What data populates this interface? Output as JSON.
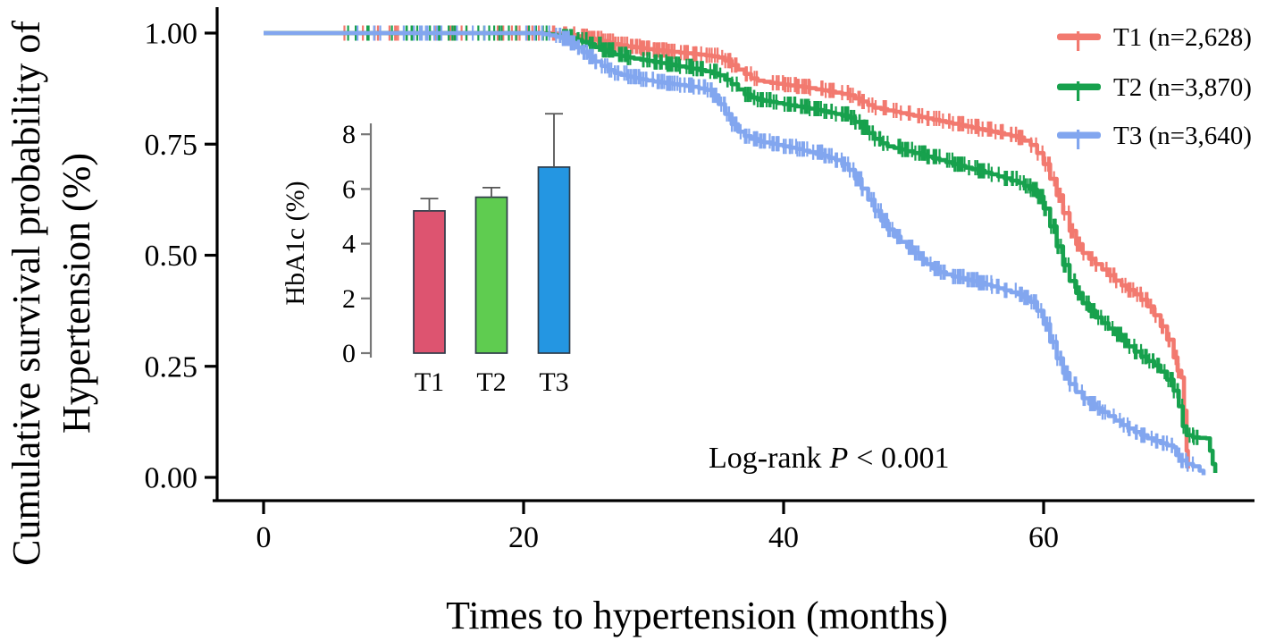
{
  "figure": {
    "kind": "Kaplan-Meier survival plot with inset bar chart",
    "background": "#ffffff"
  },
  "chart_data": [
    {
      "type": "line",
      "subtype": "kaplan-meier-step",
      "xlabel": "Times to hypertension (months)",
      "ylabel_line1": "Cumulative survival probability of",
      "ylabel_line2": "Hypertension (%)",
      "xlim": [
        0,
        76
      ],
      "ylim": [
        0,
        1
      ],
      "xticks": [
        0,
        20,
        40,
        60
      ],
      "yticks": [
        "0.00",
        "0.25",
        "0.50",
        "0.75",
        "1.00"
      ],
      "grid": false,
      "legend_position": "top-right",
      "annotation": {
        "prefix": "Log-rank",
        "stat": "P",
        "suffix": "< 0.001"
      },
      "series": [
        {
          "name": "T1",
          "label": "T1 (n=2,628)",
          "n": "2,628",
          "color": "#F2796F",
          "censor_marks": {
            "start_month": 6,
            "end_month": 70.5,
            "approx_count": 300
          },
          "points": [
            [
              0,
              1.0
            ],
            [
              22,
              1.0
            ],
            [
              23,
              0.998
            ],
            [
              24,
              0.993
            ],
            [
              25,
              0.988
            ],
            [
              26,
              0.982
            ],
            [
              27,
              0.975
            ],
            [
              28,
              0.97
            ],
            [
              29,
              0.966
            ],
            [
              30,
              0.962
            ],
            [
              31,
              0.959
            ],
            [
              32,
              0.956
            ],
            [
              33,
              0.953
            ],
            [
              34,
              0.95
            ],
            [
              35,
              0.945
            ],
            [
              35.5,
              0.938
            ],
            [
              36,
              0.928
            ],
            [
              36.5,
              0.918
            ],
            [
              37,
              0.908
            ],
            [
              37.5,
              0.898
            ],
            [
              38,
              0.893
            ],
            [
              39,
              0.888
            ],
            [
              40,
              0.884
            ],
            [
              41,
              0.88
            ],
            [
              42,
              0.876
            ],
            [
              43,
              0.871
            ],
            [
              44,
              0.866
            ],
            [
              45,
              0.86
            ],
            [
              45.5,
              0.853
            ],
            [
              46,
              0.846
            ],
            [
              46.5,
              0.838
            ],
            [
              47,
              0.832
            ],
            [
              48,
              0.826
            ],
            [
              49,
              0.82
            ],
            [
              50,
              0.814
            ],
            [
              51,
              0.808
            ],
            [
              52,
              0.802
            ],
            [
              53,
              0.796
            ],
            [
              54,
              0.79
            ],
            [
              55,
              0.784
            ],
            [
              56,
              0.778
            ],
            [
              57,
              0.772
            ],
            [
              58,
              0.765
            ],
            [
              58.5,
              0.758
            ],
            [
              59,
              0.748
            ],
            [
              59.5,
              0.73
            ],
            [
              60,
              0.705
            ],
            [
              60.5,
              0.672
            ],
            [
              61,
              0.635
            ],
            [
              61.5,
              0.595
            ],
            [
              62,
              0.555
            ],
            [
              62.5,
              0.525
            ],
            [
              63,
              0.505
            ],
            [
              63.5,
              0.492
            ],
            [
              64,
              0.48
            ],
            [
              64.5,
              0.468
            ],
            [
              65,
              0.455
            ],
            [
              65.5,
              0.443
            ],
            [
              66,
              0.432
            ],
            [
              66.5,
              0.422
            ],
            [
              67,
              0.412
            ],
            [
              67.5,
              0.4
            ],
            [
              68,
              0.385
            ],
            [
              68.5,
              0.365
            ],
            [
              69,
              0.34
            ],
            [
              69.5,
              0.31
            ],
            [
              70,
              0.27
            ],
            [
              70.3,
              0.24
            ],
            [
              70.6,
              0.225
            ],
            [
              70.8,
              0.15
            ],
            [
              71.0,
              0.06
            ],
            [
              71.1,
              0.02
            ]
          ]
        },
        {
          "name": "T2",
          "label": "T2 (n=3,870)",
          "n": "3,870",
          "color": "#17A14D",
          "censor_marks": {
            "start_month": 6,
            "end_month": 72,
            "approx_count": 380
          },
          "points": [
            [
              0,
              1.0
            ],
            [
              21,
              1.0
            ],
            [
              22,
              0.997
            ],
            [
              23,
              0.992
            ],
            [
              24,
              0.985
            ],
            [
              25,
              0.975
            ],
            [
              26,
              0.962
            ],
            [
              27,
              0.952
            ],
            [
              28,
              0.945
            ],
            [
              29,
              0.94
            ],
            [
              30,
              0.935
            ],
            [
              31,
              0.93
            ],
            [
              32,
              0.925
            ],
            [
              33,
              0.92
            ],
            [
              34,
              0.914
            ],
            [
              35,
              0.905
            ],
            [
              35.5,
              0.895
            ],
            [
              36,
              0.885
            ],
            [
              36.5,
              0.873
            ],
            [
              37,
              0.862
            ],
            [
              37.5,
              0.855
            ],
            [
              38,
              0.85
            ],
            [
              39,
              0.845
            ],
            [
              40,
              0.84
            ],
            [
              41,
              0.835
            ],
            [
              42,
              0.83
            ],
            [
              43,
              0.824
            ],
            [
              44,
              0.818
            ],
            [
              45,
              0.81
            ],
            [
              45.5,
              0.8
            ],
            [
              46,
              0.788
            ],
            [
              46.5,
              0.775
            ],
            [
              47,
              0.762
            ],
            [
              47.5,
              0.752
            ],
            [
              48,
              0.745
            ],
            [
              49,
              0.738
            ],
            [
              50,
              0.73
            ],
            [
              51,
              0.722
            ],
            [
              52,
              0.714
            ],
            [
              53,
              0.705
            ],
            [
              54,
              0.697
            ],
            [
              55,
              0.69
            ],
            [
              56,
              0.682
            ],
            [
              57,
              0.673
            ],
            [
              58,
              0.663
            ],
            [
              58.5,
              0.656
            ],
            [
              59,
              0.648
            ],
            [
              59.5,
              0.632
            ],
            [
              60,
              0.605
            ],
            [
              60.5,
              0.565
            ],
            [
              61,
              0.52
            ],
            [
              61.5,
              0.478
            ],
            [
              62,
              0.442
            ],
            [
              62.5,
              0.415
            ],
            [
              63,
              0.392
            ],
            [
              63.5,
              0.375
            ],
            [
              64,
              0.36
            ],
            [
              64.5,
              0.347
            ],
            [
              65,
              0.335
            ],
            [
              65.5,
              0.322
            ],
            [
              66,
              0.308
            ],
            [
              66.5,
              0.295
            ],
            [
              67,
              0.283
            ],
            [
              67.5,
              0.272
            ],
            [
              68,
              0.262
            ],
            [
              68.5,
              0.252
            ],
            [
              69,
              0.238
            ],
            [
              69.5,
              0.22
            ],
            [
              70,
              0.195
            ],
            [
              70.4,
              0.16
            ],
            [
              70.7,
              0.115
            ],
            [
              71,
              0.095
            ],
            [
              71.5,
              0.09
            ],
            [
              72.5,
              0.088
            ],
            [
              72.8,
              0.06
            ],
            [
              73.0,
              0.03
            ],
            [
              73.2,
              0.01
            ]
          ]
        },
        {
          "name": "T3",
          "label": "T3 (n=3,640)",
          "n": "3,640",
          "color": "#82A6EF",
          "censor_marks": {
            "start_month": 6,
            "end_month": 71.5,
            "approx_count": 360
          },
          "points": [
            [
              0,
              1.0
            ],
            [
              21,
              1.0
            ],
            [
              22,
              0.995
            ],
            [
              23,
              0.988
            ],
            [
              23.5,
              0.978
            ],
            [
              24,
              0.968
            ],
            [
              24.5,
              0.957
            ],
            [
              25,
              0.947
            ],
            [
              25.5,
              0.936
            ],
            [
              26,
              0.926
            ],
            [
              26.5,
              0.917
            ],
            [
              27,
              0.91
            ],
            [
              28,
              0.902
            ],
            [
              29,
              0.896
            ],
            [
              30,
              0.891
            ],
            [
              31,
              0.887
            ],
            [
              32,
              0.883
            ],
            [
              33,
              0.879
            ],
            [
              34,
              0.872
            ],
            [
              34.5,
              0.86
            ],
            [
              35,
              0.84
            ],
            [
              35.5,
              0.818
            ],
            [
              36,
              0.795
            ],
            [
              36.5,
              0.778
            ],
            [
              37,
              0.768
            ],
            [
              37.5,
              0.762
            ],
            [
              38,
              0.757
            ],
            [
              39,
              0.751
            ],
            [
              40,
              0.745
            ],
            [
              41,
              0.739
            ],
            [
              42,
              0.732
            ],
            [
              43,
              0.724
            ],
            [
              44,
              0.714
            ],
            [
              44.5,
              0.705
            ],
            [
              45,
              0.692
            ],
            [
              45.5,
              0.672
            ],
            [
              46,
              0.65
            ],
            [
              46.5,
              0.625
            ],
            [
              47,
              0.6
            ],
            [
              47.5,
              0.578
            ],
            [
              48,
              0.558
            ],
            [
              48.5,
              0.542
            ],
            [
              49,
              0.53
            ],
            [
              49.5,
              0.518
            ],
            [
              50,
              0.505
            ],
            [
              50.5,
              0.492
            ],
            [
              51,
              0.48
            ],
            [
              51.5,
              0.47
            ],
            [
              52,
              0.462
            ],
            [
              53,
              0.452
            ],
            [
              54,
              0.445
            ],
            [
              55,
              0.438
            ],
            [
              56,
              0.43
            ],
            [
              57,
              0.421
            ],
            [
              58,
              0.412
            ],
            [
              58.5,
              0.405
            ],
            [
              59,
              0.395
            ],
            [
              59.5,
              0.375
            ],
            [
              60,
              0.345
            ],
            [
              60.5,
              0.305
            ],
            [
              61,
              0.268
            ],
            [
              61.5,
              0.235
            ],
            [
              62,
              0.21
            ],
            [
              62.5,
              0.192
            ],
            [
              63,
              0.178
            ],
            [
              63.5,
              0.166
            ],
            [
              64,
              0.156
            ],
            [
              64.5,
              0.147
            ],
            [
              65,
              0.138
            ],
            [
              65.5,
              0.128
            ],
            [
              66,
              0.118
            ],
            [
              66.5,
              0.11
            ],
            [
              67,
              0.102
            ],
            [
              67.5,
              0.095
            ],
            [
              68,
              0.088
            ],
            [
              68.5,
              0.082
            ],
            [
              69,
              0.077
            ],
            [
              69.5,
              0.072
            ],
            [
              70,
              0.068
            ],
            [
              70.2,
              0.05
            ],
            [
              70.5,
              0.038
            ],
            [
              71,
              0.03
            ],
            [
              71.5,
              0.025
            ],
            [
              72,
              0.015
            ],
            [
              72.3,
              0.005
            ]
          ]
        }
      ]
    },
    {
      "type": "bar",
      "title": "",
      "ylabel": "HbA1c (%)",
      "categories": [
        "T1",
        "T2",
        "T3"
      ],
      "values": [
        5.2,
        5.7,
        6.8
      ],
      "error_up": [
        0.45,
        0.35,
        1.95
      ],
      "colors": [
        "#DD5470",
        "#5FCC50",
        "#2496E2"
      ],
      "bar_border_color": "#2E3B49",
      "error_bar_color": "#555555",
      "yticks": [
        0,
        2,
        4,
        6,
        8
      ],
      "ylim": [
        0,
        8
      ],
      "grid": false
    }
  ]
}
